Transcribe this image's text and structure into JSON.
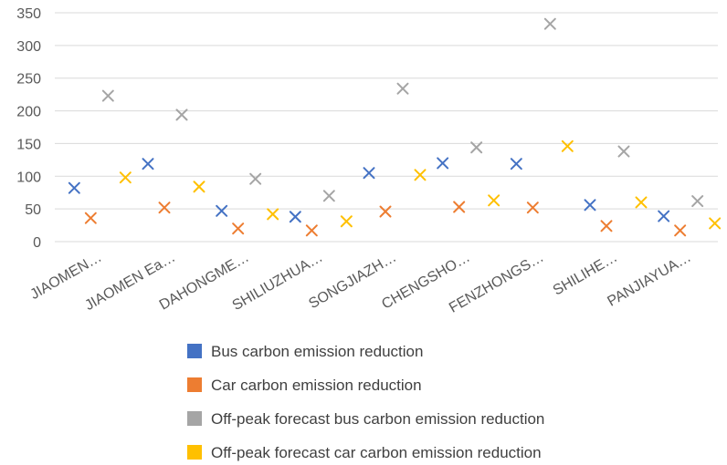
{
  "chart_data": {
    "type": "scatter",
    "categories": [
      "JIAOMEN…",
      "JIAOMEN Ea…",
      "DAHONGME…",
      "SHILIUZHUA…",
      "SONGJIAZH…",
      "CHENGSHO…",
      "FENZHONGS…",
      "SHILIHE…",
      "PANJIAYUA…"
    ],
    "ylim": [
      0,
      350
    ],
    "yticks": [
      0,
      50,
      100,
      150,
      200,
      250,
      300,
      350
    ],
    "grid": true,
    "legend_position": "bottom",
    "series": [
      {
        "name": "Bus carbon emission reduction",
        "color": "#4472C4",
        "values": [
          82,
          119,
          47,
          38,
          105,
          120,
          119,
          56,
          39
        ]
      },
      {
        "name": "Car carbon emission reduction",
        "color": "#ED7D31",
        "values": [
          36,
          52,
          20,
          17,
          46,
          53,
          52,
          24,
          17
        ]
      },
      {
        "name": "Off-peak forecast bus carbon emission reduction",
        "color": "#A5A5A5",
        "values": [
          223,
          194,
          96,
          70,
          234,
          144,
          333,
          138,
          62
        ]
      },
      {
        "name": "Off-peak forecast car carbon emission reduction",
        "color": "#FFC000",
        "values": [
          98,
          84,
          42,
          31,
          102,
          63,
          146,
          60,
          28
        ]
      }
    ]
  }
}
